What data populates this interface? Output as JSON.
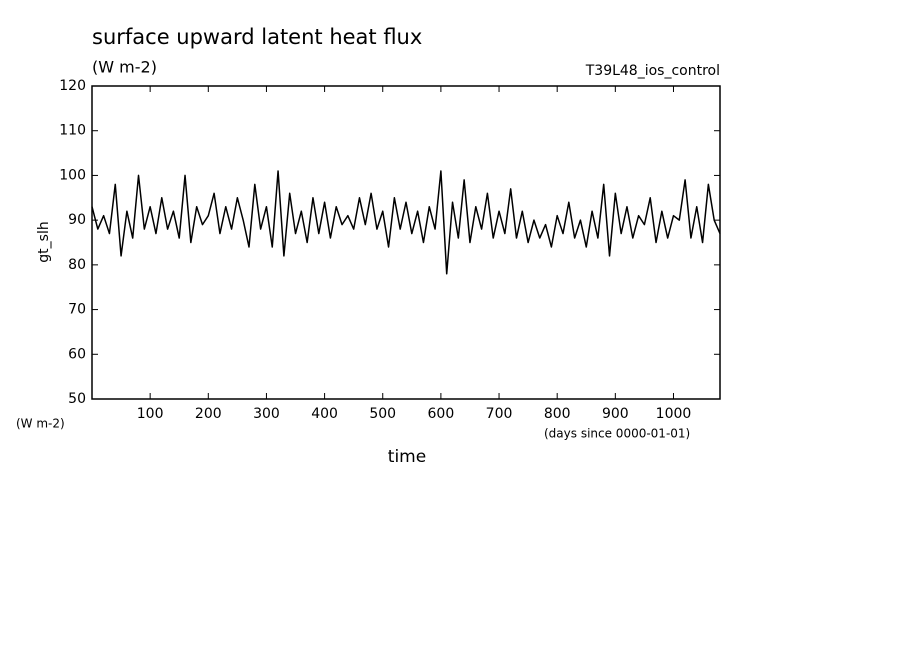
{
  "chart_data": {
    "type": "line",
    "title": "surface upward latent heat flux",
    "subtitle": "(W m-2)",
    "experiment": "T39L48_ios_control",
    "y_label": "gt_slh",
    "y_units": "(W m-2)",
    "x_label": "time",
    "x_units": "(days since 0000-01-01)",
    "xlim": [
      0,
      1080
    ],
    "ylim": [
      50,
      120
    ],
    "xticks": [
      100,
      200,
      300,
      400,
      500,
      600,
      700,
      800,
      900,
      1000
    ],
    "yticks": [
      50,
      60,
      70,
      80,
      90,
      100,
      110,
      120
    ],
    "x": [
      0,
      10,
      20,
      30,
      40,
      50,
      60,
      70,
      80,
      90,
      100,
      110,
      120,
      130,
      140,
      150,
      160,
      170,
      180,
      190,
      200,
      210,
      220,
      230,
      240,
      250,
      260,
      270,
      280,
      290,
      300,
      310,
      320,
      330,
      340,
      350,
      360,
      370,
      380,
      390,
      400,
      410,
      420,
      430,
      440,
      450,
      460,
      470,
      480,
      490,
      500,
      510,
      520,
      530,
      540,
      550,
      560,
      570,
      580,
      590,
      600,
      610,
      620,
      630,
      640,
      650,
      660,
      670,
      680,
      690,
      700,
      710,
      720,
      730,
      740,
      750,
      760,
      770,
      780,
      790,
      800,
      810,
      820,
      830,
      840,
      850,
      860,
      870,
      880,
      890,
      900,
      910,
      920,
      930,
      940,
      950,
      960,
      970,
      980,
      990,
      1000,
      1010,
      1020,
      1030,
      1040,
      1050,
      1060,
      1070,
      1080
    ],
    "series": [
      {
        "color": "#000000",
        "values": [
          93,
          88,
          91,
          87,
          98,
          82,
          92,
          86,
          100,
          88,
          93,
          87,
          95,
          88,
          92,
          86,
          100,
          85,
          93,
          89,
          91,
          96,
          87,
          93,
          88,
          95,
          90,
          84,
          98,
          88,
          93,
          84,
          101,
          82,
          96,
          87,
          92,
          85,
          95,
          87,
          94,
          86,
          93,
          89,
          91,
          88,
          95,
          89,
          96,
          88,
          92,
          84,
          95,
          88,
          94,
          87,
          92,
          85,
          93,
          88,
          101,
          78,
          94,
          86,
          99,
          85,
          93,
          88,
          96,
          86,
          92,
          87,
          97,
          86,
          92,
          85,
          90,
          86,
          89,
          84,
          91,
          87,
          94,
          86,
          90,
          84,
          92,
          86,
          98,
          82,
          96,
          87,
          93,
          86,
          91,
          89,
          95,
          85,
          92,
          86,
          91,
          90,
          99,
          86,
          93,
          85,
          98,
          90,
          87
        ]
      }
    ]
  }
}
